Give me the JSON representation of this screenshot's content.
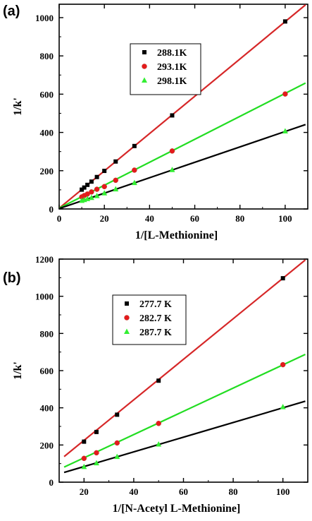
{
  "chart_data": [
    {
      "type": "scatter",
      "panel_label": "(a)",
      "xlabel": "1/[L-Methionine]",
      "ylabel": "1/k'",
      "xlim": [
        0,
        110
      ],
      "ylim": [
        0,
        1070
      ],
      "xticks": [
        0,
        20,
        40,
        60,
        80,
        100
      ],
      "yticks": [
        0,
        200,
        400,
        600,
        800,
        1000
      ],
      "legend_position": "top-left",
      "grid": false,
      "series": [
        {
          "name": "288.1K",
          "marker": "square",
          "marker_color": "#000000",
          "line_color": "#d62728",
          "fit": {
            "intercept": 4,
            "slope": 9.75
          },
          "x": [
            10,
            11.1,
            12.5,
            14.3,
            16.7,
            20,
            25,
            33.3,
            50,
            100
          ],
          "y": [
            101,
            112,
            126,
            143,
            167,
            199,
            248,
            329,
            489,
            980
          ]
        },
        {
          "name": "293.1K",
          "marker": "circle",
          "marker_color": "#e41a1c",
          "line_color": "#22dd22",
          "fit": {
            "intercept": 4,
            "slope": 6.0
          },
          "x": [
            10,
            11.1,
            12.5,
            14.3,
            16.7,
            20,
            25,
            33.3,
            50,
            100
          ],
          "y": [
            63,
            70,
            78,
            89,
            103,
            117,
            150,
            203,
            303,
            601
          ]
        },
        {
          "name": "298.1K",
          "marker": "triangle",
          "marker_color": "#33ee33",
          "line_color": "#000000",
          "fit": {
            "intercept": 2,
            "slope": 4.03
          },
          "x": [
            10,
            11.1,
            12.5,
            14.3,
            16.7,
            20,
            25,
            33.3,
            50,
            100
          ],
          "y": [
            43,
            47,
            52,
            58,
            68,
            82,
            103,
            136,
            204,
            406
          ]
        }
      ]
    },
    {
      "type": "scatter",
      "panel_label": "(b)",
      "xlabel": "1/[N-Acetyl L-Methionine]",
      "ylabel": "1/k'",
      "xlim": [
        10,
        110
      ],
      "ylim": [
        0,
        1200
      ],
      "xticks": [
        20,
        40,
        60,
        80,
        100
      ],
      "yticks": [
        0,
        200,
        400,
        600,
        800,
        1000,
        1200
      ],
      "legend_position": "top-left",
      "grid": false,
      "series": [
        {
          "name": "277.7 K",
          "marker": "square",
          "marker_color": "#000000",
          "line_color": "#d62728",
          "fit": {
            "intercept": 7,
            "slope": 10.9,
            "x_start": 12
          },
          "x": [
            20,
            25,
            33.3,
            50,
            100
          ],
          "y": [
            218,
            270,
            363,
            546,
            1097
          ]
        },
        {
          "name": "282.7 K",
          "marker": "circle",
          "marker_color": "#e41a1c",
          "line_color": "#22dd22",
          "fit": {
            "intercept": 6,
            "slope": 6.25,
            "x_start": 12
          },
          "x": [
            20,
            25,
            33.3,
            50,
            100
          ],
          "y": [
            128,
            158,
            211,
            316,
            632
          ]
        },
        {
          "name": "287.7 K",
          "marker": "triangle",
          "marker_color": "#33ee33",
          "line_color": "#000000",
          "fit": {
            "intercept": 5,
            "slope": 3.95,
            "x_start": 12
          },
          "x": [
            20,
            25,
            33.3,
            50,
            100
          ],
          "y": [
            82,
            102,
            136,
            203,
            404
          ]
        }
      ]
    }
  ]
}
